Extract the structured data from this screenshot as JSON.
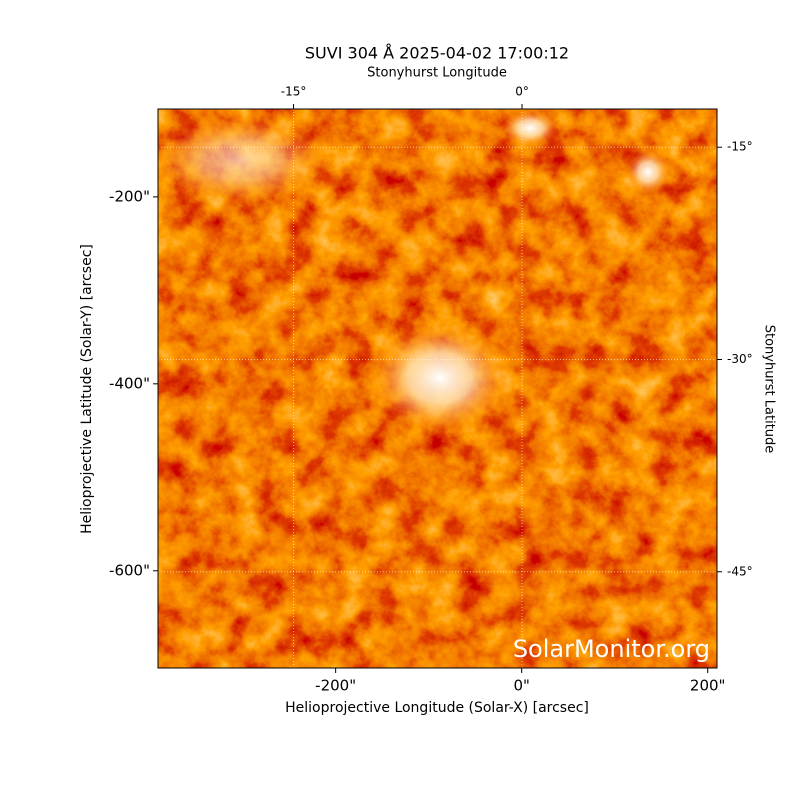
{
  "chart_data": {
    "type": "image",
    "title": "SUVI 304 Å 2025-04-02 17:00:12",
    "xlabel": "Helioprojective Longitude (Solar-X) [arcsec]",
    "ylabel": "Helioprojective Latitude (Solar-Y) [arcsec]",
    "x2label": "Stonyhurst Longitude",
    "y2label": "Stonyhurst Latitude",
    "watermark": "SolarMonitor.org",
    "xlim": [
      -391,
      210
    ],
    "ylim": [
      -704,
      -106
    ],
    "xticks": [
      {
        "value": -200,
        "label": "-200\""
      },
      {
        "value": 0,
        "label": "0\""
      },
      {
        "value": 200,
        "label": "200\""
      }
    ],
    "yticks": [
      {
        "value": -200,
        "label": "-200\""
      },
      {
        "value": -400,
        "label": "-400\""
      },
      {
        "value": -600,
        "label": "-600\""
      }
    ],
    "x2lim": [
      -23.9,
      12.8
    ],
    "x2ticks": [
      {
        "value": -15,
        "label": "-15°"
      },
      {
        "value": 0,
        "label": "0°"
      }
    ],
    "y2lim": [
      -12.3,
      -51.8
    ],
    "y2ticks": [
      {
        "value": -15,
        "label": "-15°"
      },
      {
        "value": -30,
        "label": "-30°"
      },
      {
        "value": -45,
        "label": "-45°"
      }
    ],
    "grid": true
  }
}
